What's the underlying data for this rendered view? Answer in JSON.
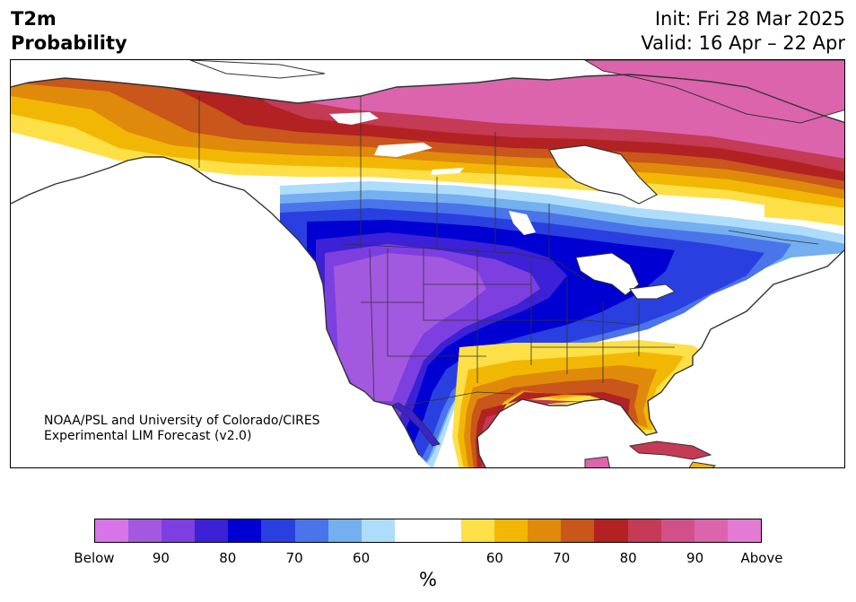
{
  "header": {
    "variable": "T2m",
    "product": "Probability",
    "init": "Init: Fri 28 Mar 2025",
    "valid": "Valid: 16 Apr – 22 Apr"
  },
  "credit": {
    "line1": "NOAA/PSL and University of Colorado/CIRES",
    "line2": "Experimental LIM Forecast (v2.0)"
  },
  "colorbar": {
    "colors": [
      "#d774e7",
      "#a259e0",
      "#7d3fe0",
      "#3c21d6",
      "#0000d2",
      "#2a3fe0",
      "#4a74ea",
      "#74afef",
      "#aedcfb",
      "#ffffff",
      "#ffffff",
      "#fde047",
      "#f2b705",
      "#df8a0b",
      "#c9561a",
      "#b22222",
      "#c53a55",
      "#d2508a",
      "#dc64ad",
      "#e37ad3"
    ],
    "tick_labels": [
      "Below",
      "90",
      "80",
      "70",
      "60",
      "60",
      "70",
      "80",
      "90",
      "Above"
    ],
    "unit": "%"
  }
}
